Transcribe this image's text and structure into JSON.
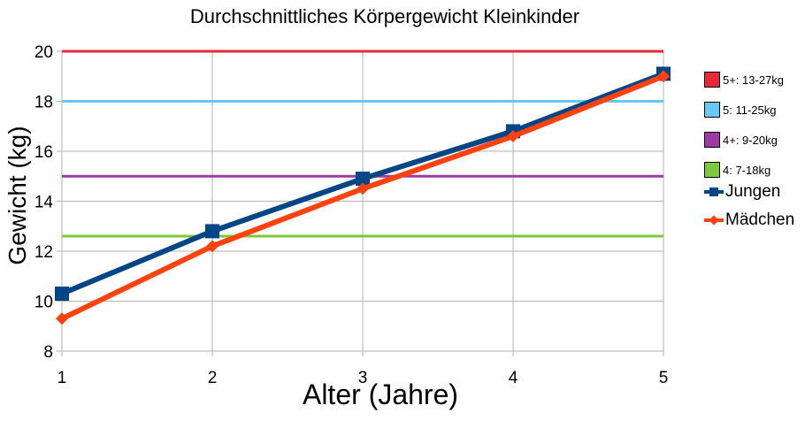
{
  "chart_data": {
    "type": "line",
    "title": "Durchschnittliches Körpergewicht Kleinkinder",
    "xlabel": "Alter (Jahre)",
    "ylabel": "Gewicht (kg)",
    "x": [
      1,
      2,
      3,
      4,
      5
    ],
    "xlim": [
      1,
      5
    ],
    "ylim": [
      8,
      20
    ],
    "yticks": [
      8,
      10,
      12,
      14,
      16,
      18,
      20
    ],
    "grid": true,
    "legend_position": "right",
    "reference_lines": [
      {
        "label": "5+: 13-27kg",
        "y": 20,
        "color": "#e8283a"
      },
      {
        "label": "5: 11-25kg",
        "y": 18,
        "color": "#66c8f5"
      },
      {
        "label": "4+: 9-20kg",
        "y": 15,
        "color": "#9d3aa3"
      },
      {
        "label": "4: 7-18kg",
        "y": 12.6,
        "color": "#7ec83c"
      }
    ],
    "series": [
      {
        "name": "Jungen",
        "values": [
          10.3,
          12.8,
          14.9,
          16.8,
          19.1
        ],
        "color": "#004586",
        "marker": "square"
      },
      {
        "name": "Mädchen",
        "values": [
          9.3,
          12.2,
          14.5,
          16.6,
          19.0
        ],
        "color": "#ff420e",
        "marker": "diamond"
      }
    ]
  }
}
